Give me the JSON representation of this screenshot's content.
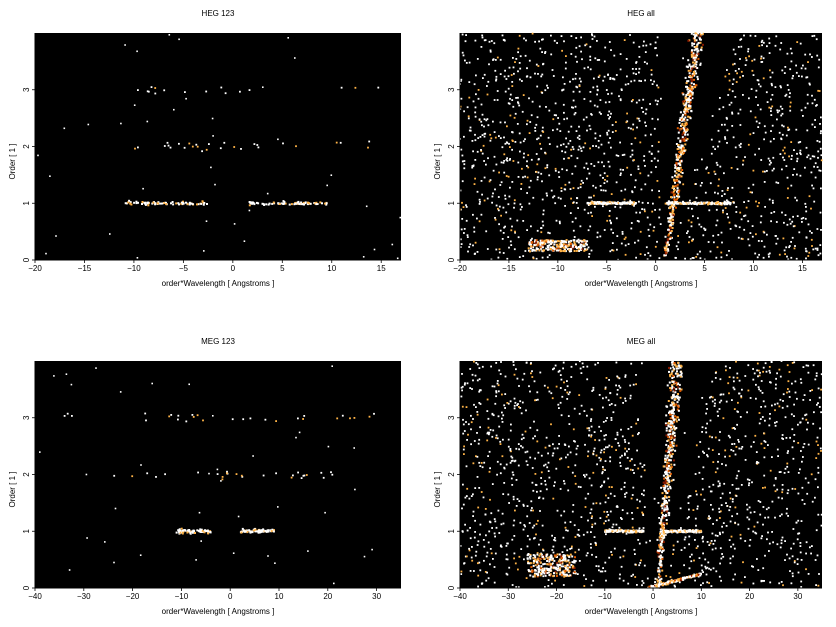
{
  "chart_data": [
    {
      "type": "heatmap",
      "title": "HEG 123",
      "xlabel": "order*Wavelength [ Angstroms ]",
      "ylabel": "Order [ 1 ]",
      "xlim": [
        -20,
        17
      ],
      "ylim": [
        0,
        4
      ],
      "xticks": [
        -20,
        -15,
        -10,
        -5,
        0,
        5,
        10,
        15
      ],
      "yticks": [
        0,
        1,
        2,
        3
      ],
      "background": "#000000",
      "colormap": [
        "#8b1a00",
        "#e05a00",
        "#ffb347",
        "#ffffff"
      ],
      "sparse_counts": true,
      "bands": [
        {
          "order": 1,
          "x_ranges": [
            [
              -11,
              -2.5
            ],
            [
              1.5,
              9.5
            ]
          ],
          "density": "high"
        },
        {
          "order": 2,
          "x_ranges": [
            [
              -12,
              14
            ]
          ],
          "density": "low"
        },
        {
          "order": 3,
          "x_ranges": [
            [
              -12,
              16
            ]
          ],
          "density": "very low"
        }
      ]
    },
    {
      "type": "heatmap",
      "title": "HEG all",
      "xlabel": "order*Wavelength [ Angstroms ]",
      "ylabel": "Order [ 1 ]",
      "xlim": [
        -20,
        17
      ],
      "ylim": [
        0,
        4
      ],
      "xticks": [
        -20,
        -15,
        -10,
        -5,
        0,
        5,
        10,
        15
      ],
      "yticks": [
        0,
        1,
        2,
        3
      ],
      "background": "#000000",
      "colormap": [
        "#8b1a00",
        "#e05a00",
        "#ffb347",
        "#ffffff"
      ],
      "features": {
        "background_noise": "dense scattered counts across full range, sparse near zero-order",
        "zero_order_streak": {
          "x_at_order_0": 1.0,
          "x_at_order_4": 4.3
        },
        "order_1_line": {
          "x_ranges": [
            [
              -7,
              -2
            ],
            [
              1,
              8
            ]
          ]
        },
        "low_order_clump": {
          "x_range": [
            -13,
            -7
          ],
          "order_range": [
            0.15,
            0.35
          ]
        }
      }
    },
    {
      "type": "heatmap",
      "title": "MEG 123",
      "xlabel": "order*Wavelength [ Angstroms ]",
      "ylabel": "Order [ 1 ]",
      "xlim": [
        -40,
        35
      ],
      "ylim": [
        0,
        4
      ],
      "xticks": [
        -40,
        -30,
        -20,
        -10,
        0,
        10,
        20,
        30
      ],
      "yticks": [
        0,
        1,
        2,
        3
      ],
      "background": "#000000",
      "colormap": [
        "#8b1a00",
        "#e05a00",
        "#ffb347",
        "#ffffff"
      ],
      "sparse_counts": true,
      "bands": [
        {
          "order": 1,
          "x_ranges": [
            [
              -11,
              -4
            ],
            [
              2,
              9
            ]
          ],
          "density": "high"
        },
        {
          "order": 2,
          "x_ranges": [
            [
              -28,
              22
            ]
          ],
          "density": "low"
        },
        {
          "order": 3,
          "x_ranges": [
            [
              -35,
              30
            ]
          ],
          "density": "low"
        }
      ]
    },
    {
      "type": "heatmap",
      "title": "MEG all",
      "xlabel": "order*Wavelength [ Angstroms ]",
      "ylabel": "Order [ 1 ]",
      "xlim": [
        -40,
        35
      ],
      "ylim": [
        0,
        4
      ],
      "xticks": [
        -40,
        -30,
        -20,
        -10,
        0,
        10,
        20,
        30
      ],
      "yticks": [
        0,
        1,
        2,
        3
      ],
      "background": "#000000",
      "colormap": [
        "#8b1a00",
        "#e05a00",
        "#ffb347",
        "#ffffff"
      ],
      "features": {
        "background_noise": "dense scattered counts across full range, sparse near zero-order",
        "zero_order_streak": {
          "x_at_order_0": 1.0,
          "x_at_order_4": 5.0
        },
        "order_1_line": {
          "x_ranges": [
            [
              -10,
              -2
            ],
            [
              2,
              10
            ]
          ]
        },
        "low_order_clump": {
          "x_range": [
            -26,
            -16
          ],
          "order_range": [
            0.2,
            0.6
          ]
        },
        "low_order_streak": {
          "x_range": [
            -1,
            10
          ],
          "order_range": [
            0.0,
            0.25
          ]
        }
      }
    }
  ]
}
